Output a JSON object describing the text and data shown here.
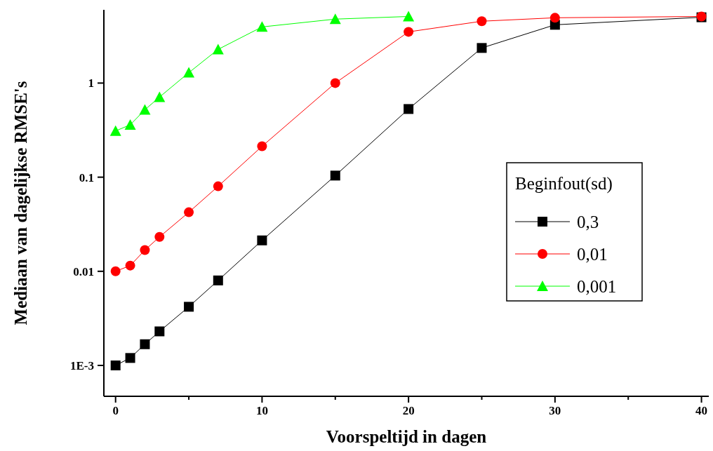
{
  "chart_data": {
    "type": "line",
    "xlabel": "Voorspeltijd in dagen",
    "ylabel": "Mediaan van dagelijkse RMSE's",
    "legend_title": "Beginfout(sd)",
    "legend": "right",
    "log": "y",
    "xlim": [
      -0.8,
      40.5
    ],
    "ylim": [
      0.00047,
      6
    ],
    "xticks": [
      0,
      {
        "value": 5,
        "label": null
      },
      10,
      {
        "value": 15,
        "label": null
      },
      20,
      {
        "value": 25,
        "label": null
      },
      30,
      {
        "value": 35,
        "label": null
      },
      40
    ],
    "yticks": [
      {
        "value": 0.001,
        "label": "1E-3"
      },
      0.01,
      0.1,
      1
    ],
    "series": [
      {
        "name": "0,3",
        "color": "#000000",
        "marker": "square",
        "x": [
          0,
          1,
          2,
          3,
          5,
          7,
          10,
          15,
          20,
          25,
          30,
          40
        ],
        "values": [
          0.001,
          0.0012,
          0.00168,
          0.0023,
          0.0042,
          0.008,
          0.0213,
          0.104,
          0.53,
          2.36,
          4.16,
          5.0
        ]
      },
      {
        "name": "0,01",
        "color": "#ff0000",
        "marker": "circle",
        "x": [
          0,
          1,
          2,
          3,
          5,
          7,
          10,
          15,
          20,
          25,
          30,
          40
        ],
        "values": [
          0.01,
          0.0115,
          0.0168,
          0.0232,
          0.0424,
          0.08,
          0.213,
          1.0,
          3.5,
          4.54,
          4.94,
          5.1
        ]
      },
      {
        "name": "0,001",
        "color": "#00ff00",
        "marker": "triangle",
        "x": [
          0,
          1,
          2,
          3,
          5,
          7,
          10,
          15,
          20
        ],
        "values": [
          0.31,
          0.36,
          0.52,
          0.71,
          1.29,
          2.28,
          3.95,
          4.78,
          5.1
        ]
      }
    ]
  }
}
